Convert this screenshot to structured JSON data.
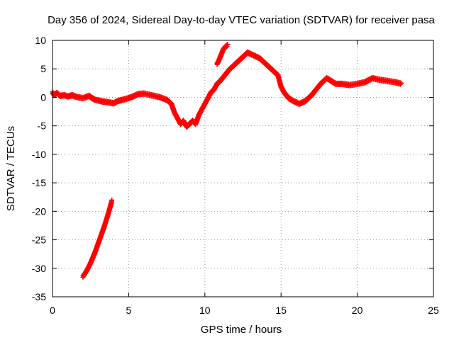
{
  "chart_data": {
    "type": "scatter",
    "title": "Day 356 of 2024, Sidereal Day-to-day VTEC variation (SDTVAR) for receiver pasa",
    "xlabel": "GPS time / hours",
    "ylabel": "SDTVAR / TECUs",
    "xlim": [
      0,
      25
    ],
    "ylim": [
      -35,
      10
    ],
    "xticks": [
      0,
      5,
      10,
      15,
      20,
      25
    ],
    "yticks": [
      -35,
      -30,
      -25,
      -20,
      -15,
      -10,
      -5,
      0,
      5,
      10
    ],
    "grid": true,
    "marker": "+",
    "colors": {
      "series": "#ff0000",
      "grid": "#a0a0a0",
      "axis": "#000000"
    },
    "series": [
      {
        "name": "SDTVAR",
        "segments": [
          {
            "x": [
              0.0,
              0.1,
              0.3,
              0.5,
              0.8,
              1.0,
              1.3,
              1.6,
              2.0,
              2.4,
              2.6,
              2.8,
              3.0,
              3.3,
              3.6,
              4.0,
              4.3,
              4.6,
              5.0,
              5.3,
              5.6,
              6.0,
              6.5,
              7.0,
              7.5,
              7.8,
              8.0,
              8.2,
              8.4,
              8.6,
              8.8,
              9.0,
              9.2,
              9.4,
              9.6,
              9.8,
              10.0,
              10.2,
              10.4,
              10.6,
              10.8,
              11.0,
              11.3,
              11.6,
              12.0,
              12.4,
              12.8,
              13.2,
              13.6,
              14.0,
              14.4,
              14.8,
              15.0,
              15.2,
              15.5,
              15.8,
              16.2,
              16.6,
              17.0,
              17.3,
              17.6,
              18.0,
              18.3,
              18.6,
              19.0,
              19.5,
              20.0,
              20.5,
              21.0,
              21.5,
              22.0,
              22.5,
              22.9
            ],
            "y": [
              1.0,
              0.6,
              0.9,
              0.4,
              0.5,
              0.3,
              0.5,
              0.2,
              0.0,
              0.4,
              0.0,
              -0.3,
              -0.4,
              -0.6,
              -0.7,
              -0.9,
              -0.5,
              -0.3,
              0.0,
              0.3,
              0.7,
              0.8,
              0.5,
              0.2,
              -0.3,
              -1.0,
              -2.5,
              -3.5,
              -4.5,
              -4.0,
              -5.0,
              -4.5,
              -4.0,
              -4.5,
              -3.0,
              -2.0,
              -1.0,
              0.0,
              1.0,
              1.5,
              2.5,
              3.0,
              4.0,
              5.0,
              6.0,
              7.0,
              8.0,
              7.5,
              7.0,
              6.0,
              5.0,
              4.0,
              2.0,
              1.0,
              0.0,
              -0.5,
              -1.0,
              -0.5,
              0.5,
              1.5,
              2.5,
              3.5,
              3.0,
              2.5,
              2.5,
              2.3,
              2.5,
              2.8,
              3.5,
              3.2,
              3.0,
              2.8,
              2.5
            ]
          },
          {
            "x": [
              10.8,
              10.9,
              11.0,
              11.1,
              11.2,
              11.35,
              11.5
            ],
            "y": [
              6.0,
              6.5,
              7.2,
              7.8,
              8.5,
              9.0,
              9.3
            ]
          },
          {
            "x": [
              2.0,
              2.2,
              2.4,
              2.6,
              2.8,
              3.0,
              3.2,
              3.4,
              3.6,
              3.8,
              3.9
            ],
            "y": [
              -31.3,
              -30.5,
              -29.5,
              -28.3,
              -27.0,
              -25.5,
              -24.0,
              -22.5,
              -20.8,
              -19.0,
              -18.0
            ]
          }
        ]
      }
    ]
  }
}
